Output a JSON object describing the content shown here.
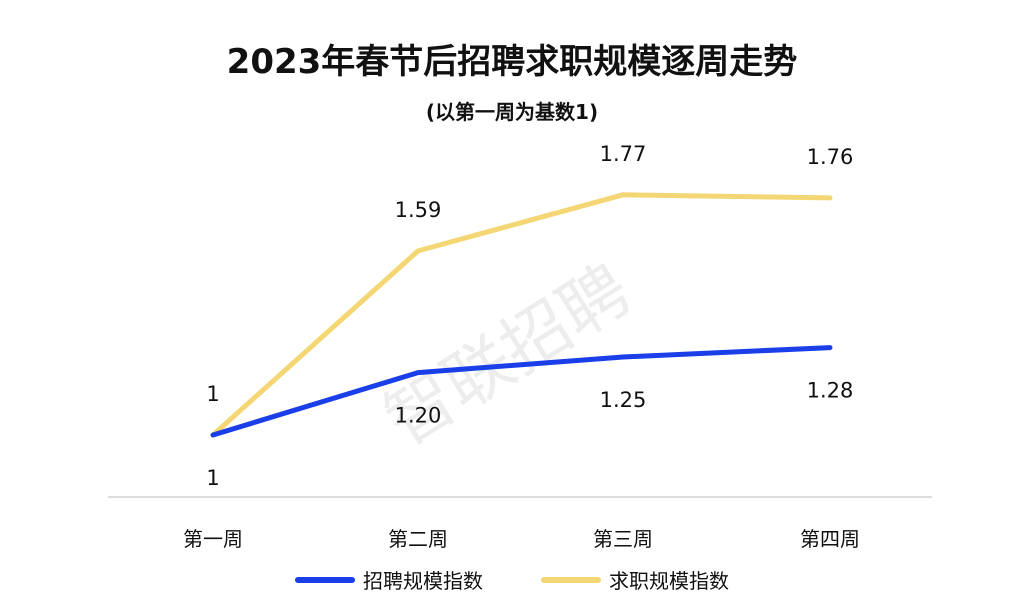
{
  "chart_data": {
    "type": "line",
    "title": "2023年春节后招聘求职规模逐周走势",
    "subtitle": "(以第一周为基数1)",
    "categories": [
      "第一周",
      "第二周",
      "第三周",
      "第四周"
    ],
    "series": [
      {
        "name": "招聘规模指数",
        "values": [
          1,
          1.2,
          1.25,
          1.28
        ],
        "labels": [
          "1",
          "1.20",
          "1.25",
          "1.28"
        ],
        "color": "#1a3ee8",
        "label_side": "below"
      },
      {
        "name": "求职规模指数",
        "values": [
          1,
          1.59,
          1.77,
          1.76
        ],
        "labels": [
          "1",
          "1.59",
          "1.77",
          "1.76"
        ],
        "color": "#f4d774",
        "label_side": "above"
      }
    ],
    "ylim": [
      0.8,
      1.85
    ],
    "grid": false,
    "legend": "bottom",
    "watermark": "智联招聘"
  }
}
